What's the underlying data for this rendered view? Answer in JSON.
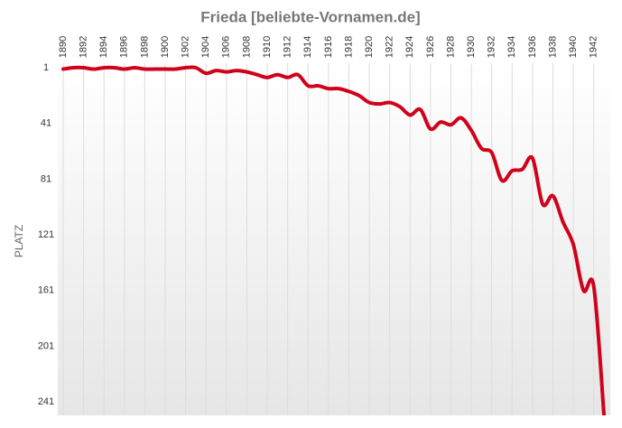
{
  "chart_data": {
    "type": "line",
    "title": "Frieda [beliebte-Vornamen.de]",
    "y_label": "PLATZ",
    "x": [
      1890,
      1891,
      1892,
      1893,
      1894,
      1895,
      1896,
      1897,
      1898,
      1899,
      1900,
      1901,
      1902,
      1903,
      1904,
      1905,
      1906,
      1907,
      1908,
      1909,
      1910,
      1911,
      1912,
      1913,
      1914,
      1915,
      1916,
      1917,
      1918,
      1919,
      1920,
      1921,
      1922,
      1923,
      1924,
      1925,
      1926,
      1927,
      1928,
      1929,
      1930,
      1931,
      1932,
      1933,
      1934,
      1935,
      1936,
      1937,
      1938,
      1939,
      1940,
      1941,
      1942,
      1943
    ],
    "series": [
      {
        "name": "Frieda",
        "color": "#d0021b",
        "values": [
          2,
          1,
          1,
          2,
          1,
          1,
          2,
          1,
          2,
          2,
          2,
          2,
          1,
          1,
          5,
          3,
          4,
          3,
          4,
          6,
          8,
          6,
          8,
          6,
          14,
          14,
          16,
          16,
          18,
          21,
          26,
          27,
          26,
          29,
          35,
          31,
          45,
          40,
          42,
          37,
          46,
          59,
          62,
          82,
          75,
          74,
          66,
          99,
          93,
          112,
          128,
          161,
          158,
          250
        ]
      }
    ],
    "xlim": [
      1890,
      1943
    ],
    "xticks": [
      1890,
      1892,
      1894,
      1896,
      1898,
      1900,
      1902,
      1904,
      1906,
      1908,
      1910,
      1912,
      1914,
      1916,
      1918,
      1920,
      1922,
      1924,
      1926,
      1928,
      1930,
      1932,
      1934,
      1936,
      1938,
      1940,
      1942
    ],
    "ylim": [
      1,
      250
    ],
    "y_inverted": true,
    "yticks": [
      1,
      41,
      81,
      121,
      161,
      201,
      241
    ],
    "grid": true
  }
}
